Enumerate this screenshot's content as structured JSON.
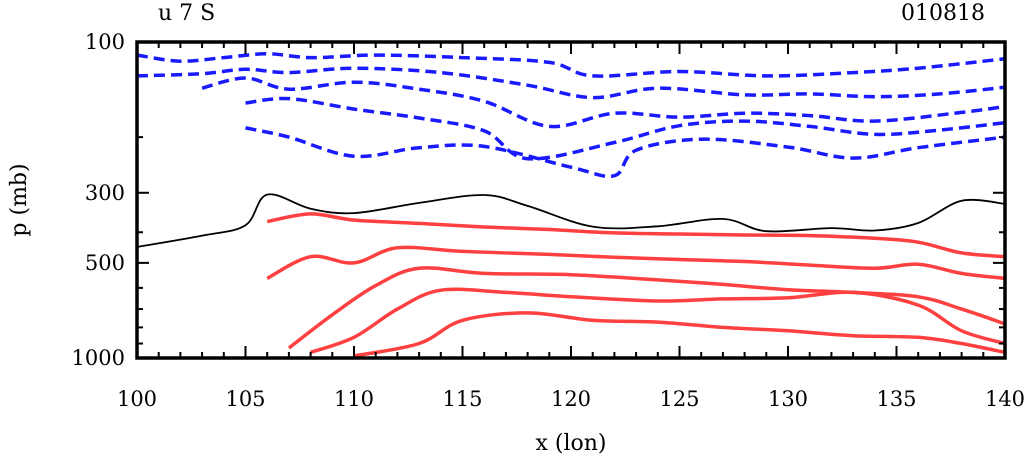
{
  "chart_data": {
    "type": "contour",
    "title_left": "u 7 S",
    "title_right": "010818",
    "xlabel": "x (lon)",
    "ylabel": "p (mb)",
    "xlim": [
      100,
      140
    ],
    "x_ticks": [
      100,
      105,
      110,
      115,
      120,
      125,
      130,
      135,
      140
    ],
    "x_tick_labels": [
      "100",
      "105",
      "110",
      "115",
      "120",
      "125",
      "130",
      "135",
      "140"
    ],
    "y_scale": "log",
    "y_ticks": [
      100,
      300,
      500,
      1000
    ],
    "y_tick_labels": [
      "100",
      "300",
      "500",
      "1000"
    ],
    "y_reversed": true,
    "series": [
      {
        "name": "",
        "style": "dashed",
        "color": "#1a1aff"
      },
      {
        "name": "",
        "style": "solid",
        "color": "#000000"
      },
      {
        "name": "",
        "style": "solid",
        "color": "#ff4040"
      }
    ],
    "contours": {
      "negative": [
        [
          [
            100,
            110
          ],
          [
            102,
            115
          ],
          [
            104,
            112
          ],
          [
            106,
            109
          ],
          [
            108,
            112
          ],
          [
            111,
            110
          ],
          [
            115,
            112
          ],
          [
            119,
            116
          ],
          [
            121,
            128
          ],
          [
            125,
            124
          ],
          [
            129,
            128
          ],
          [
            133,
            125
          ],
          [
            136,
            121
          ],
          [
            140,
            113
          ]
        ],
        [
          [
            100,
            128
          ],
          [
            103,
            126
          ],
          [
            105,
            122
          ],
          [
            107,
            125
          ],
          [
            110,
            121
          ],
          [
            114,
            125
          ],
          [
            118,
            137
          ],
          [
            121,
            150
          ],
          [
            124,
            140
          ],
          [
            128,
            147
          ],
          [
            131,
            146
          ],
          [
            134,
            149
          ],
          [
            137,
            146
          ],
          [
            140,
            139
          ]
        ],
        [
          [
            103,
            140
          ],
          [
            105,
            130
          ],
          [
            107,
            141
          ],
          [
            110,
            134
          ],
          [
            113,
            141
          ],
          [
            116,
            154
          ],
          [
            119,
            185
          ],
          [
            122,
            168
          ],
          [
            125,
            173
          ],
          [
            128,
            168
          ],
          [
            131,
            171
          ],
          [
            134,
            178
          ],
          [
            138,
            167
          ],
          [
            140,
            160
          ]
        ],
        [
          [
            105,
            156
          ],
          [
            107,
            151
          ],
          [
            110,
            163
          ],
          [
            113,
            174
          ],
          [
            116,
            191
          ],
          [
            118,
            234
          ],
          [
            122,
            208
          ],
          [
            125,
            184
          ],
          [
            128,
            178
          ],
          [
            131,
            185
          ],
          [
            134,
            196
          ],
          [
            137,
            190
          ],
          [
            140,
            180
          ]
        ],
        [
          [
            105,
            187
          ],
          [
            107,
            200
          ],
          [
            110,
            230
          ],
          [
            113,
            216
          ],
          [
            116,
            214
          ],
          [
            120,
            249
          ],
          [
            122,
            265
          ],
          [
            123,
            220
          ],
          [
            126,
            203
          ],
          [
            130,
            215
          ],
          [
            133,
            233
          ],
          [
            136,
            216
          ],
          [
            140,
            200
          ]
        ]
      ],
      "zero": [
        [
          100,
          445
        ],
        [
          103,
          410
        ],
        [
          105,
          380
        ],
        [
          106,
          304
        ],
        [
          108,
          337
        ],
        [
          110,
          348
        ],
        [
          113,
          323
        ],
        [
          116,
          305
        ],
        [
          118,
          330
        ],
        [
          121,
          384
        ],
        [
          124,
          383
        ],
        [
          127,
          363
        ],
        [
          129,
          397
        ],
        [
          132,
          388
        ],
        [
          134,
          395
        ],
        [
          136,
          374
        ],
        [
          138,
          318
        ],
        [
          140,
          325
        ]
      ],
      "positive": [
        [
          [
            106,
            370
          ],
          [
            108,
            350
          ],
          [
            110,
            366
          ],
          [
            113,
            375
          ],
          [
            116,
            385
          ],
          [
            119,
            392
          ],
          [
            122,
            402
          ],
          [
            125,
            405
          ],
          [
            128,
            408
          ],
          [
            131,
            410
          ],
          [
            134,
            418
          ],
          [
            136,
            430
          ],
          [
            138,
            465
          ],
          [
            140,
            478
          ]
        ],
        [
          [
            106,
            560
          ],
          [
            108,
            478
          ],
          [
            110,
            500
          ],
          [
            112,
            448
          ],
          [
            115,
            460
          ],
          [
            119,
            470
          ],
          [
            122,
            480
          ],
          [
            125,
            488
          ],
          [
            128,
            495
          ],
          [
            131,
            508
          ],
          [
            134,
            520
          ],
          [
            136,
            505
          ],
          [
            138,
            540
          ],
          [
            140,
            560
          ]
        ],
        [
          [
            107,
            930
          ],
          [
            109,
            730
          ],
          [
            111,
            590
          ],
          [
            113,
            520
          ],
          [
            116,
            540
          ],
          [
            120,
            545
          ],
          [
            124,
            566
          ],
          [
            127,
            585
          ],
          [
            130,
            608
          ],
          [
            133,
            620
          ],
          [
            136,
            640
          ],
          [
            138,
            700
          ],
          [
            140,
            780
          ]
        ],
        [
          [
            108,
            960
          ],
          [
            110,
            860
          ],
          [
            112,
            700
          ],
          [
            114,
            610
          ],
          [
            117,
            620
          ],
          [
            120,
            640
          ],
          [
            124,
            660
          ],
          [
            127,
            650
          ],
          [
            130,
            645
          ],
          [
            133,
            620
          ],
          [
            136,
            680
          ],
          [
            138,
            820
          ],
          [
            140,
            900
          ]
        ],
        [
          [
            110,
            985
          ],
          [
            113,
            900
          ],
          [
            115,
            760
          ],
          [
            118,
            720
          ],
          [
            121,
            760
          ],
          [
            124,
            770
          ],
          [
            127,
            800
          ],
          [
            130,
            820
          ],
          [
            133,
            850
          ],
          [
            136,
            860
          ],
          [
            138,
            900
          ],
          [
            140,
            960
          ]
        ]
      ]
    }
  }
}
